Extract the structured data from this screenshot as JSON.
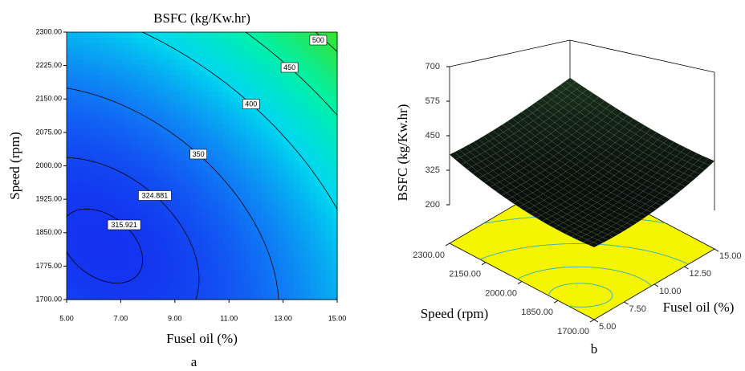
{
  "chart_data": [
    {
      "type": "contour",
      "title": "BSFC (kg/Kw.hr)",
      "x_label": "Fusel oil (%)",
      "y_label": "Speed (rpm)",
      "panel_label": "a",
      "xlim": [
        5,
        15
      ],
      "ylim": [
        1700,
        2300
      ],
      "xticks": [
        {
          "value": 5,
          "label": "5.00"
        },
        {
          "value": 7,
          "label": "7.00"
        },
        {
          "value": 9,
          "label": "9.00"
        },
        {
          "value": 11,
          "label": "11.00"
        },
        {
          "value": 13,
          "label": "13.00"
        },
        {
          "value": 15,
          "label": "15.00"
        }
      ],
      "yticks": [
        {
          "value": 1700,
          "label": "1700.00"
        },
        {
          "value": 1775,
          "label": "1775.00"
        },
        {
          "value": 1850,
          "label": "1850.00"
        },
        {
          "value": 1925,
          "label": "1925.00"
        },
        {
          "value": 2000,
          "label": "2000.00"
        },
        {
          "value": 2075,
          "label": "2075.00"
        },
        {
          "value": 2150,
          "label": "2150.00"
        },
        {
          "value": 2225,
          "label": "2225.00"
        },
        {
          "value": 2300,
          "label": "2300.00"
        }
      ],
      "contour_levels": [
        315.921,
        324.881,
        350,
        400,
        450,
        500
      ]
    },
    {
      "type": "surface",
      "z_label": "BSFC (kg/Kw.hr)",
      "x_label": "Fusel oil (%)",
      "y_label": "Speed (rpm)",
      "panel_label": "b",
      "xlim": [
        5,
        15
      ],
      "ylim": [
        1700,
        2300
      ],
      "zlim": [
        200,
        700
      ],
      "xticks": [
        {
          "value": 5,
          "label": "5.00"
        },
        {
          "value": 7.5,
          "label": "7.50"
        },
        {
          "value": 10,
          "label": "10.00"
        },
        {
          "value": 12.5,
          "label": "12.50"
        },
        {
          "value": 15,
          "label": "15.00"
        }
      ],
      "yticks": [
        {
          "value": 1700,
          "label": "1700.00"
        },
        {
          "value": 1850,
          "label": "1850.00"
        },
        {
          "value": 2000,
          "label": "2000.00"
        },
        {
          "value": 2150,
          "label": "2150.00"
        },
        {
          "value": 2300,
          "label": "2300.00"
        }
      ],
      "zticks": [
        200,
        325,
        450,
        575,
        700
      ]
    }
  ]
}
